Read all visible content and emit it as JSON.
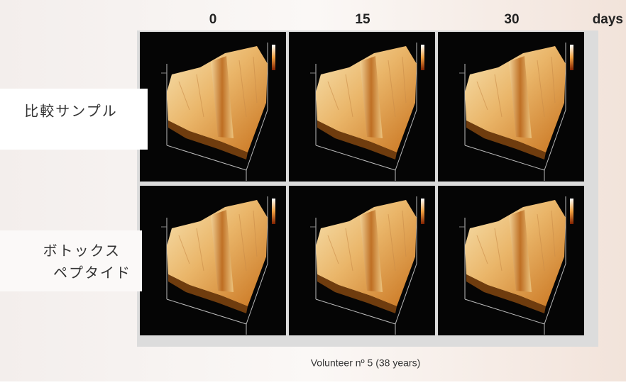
{
  "header": {
    "columns": [
      "0",
      "15",
      "30"
    ],
    "unit": "days"
  },
  "rows": [
    {
      "label": [
        "比較サンプル"
      ]
    },
    {
      "label": [
        "ボトックス",
        "ペプタイド"
      ]
    }
  ],
  "caption": "Volunteer nº 5 (38 years)"
}
